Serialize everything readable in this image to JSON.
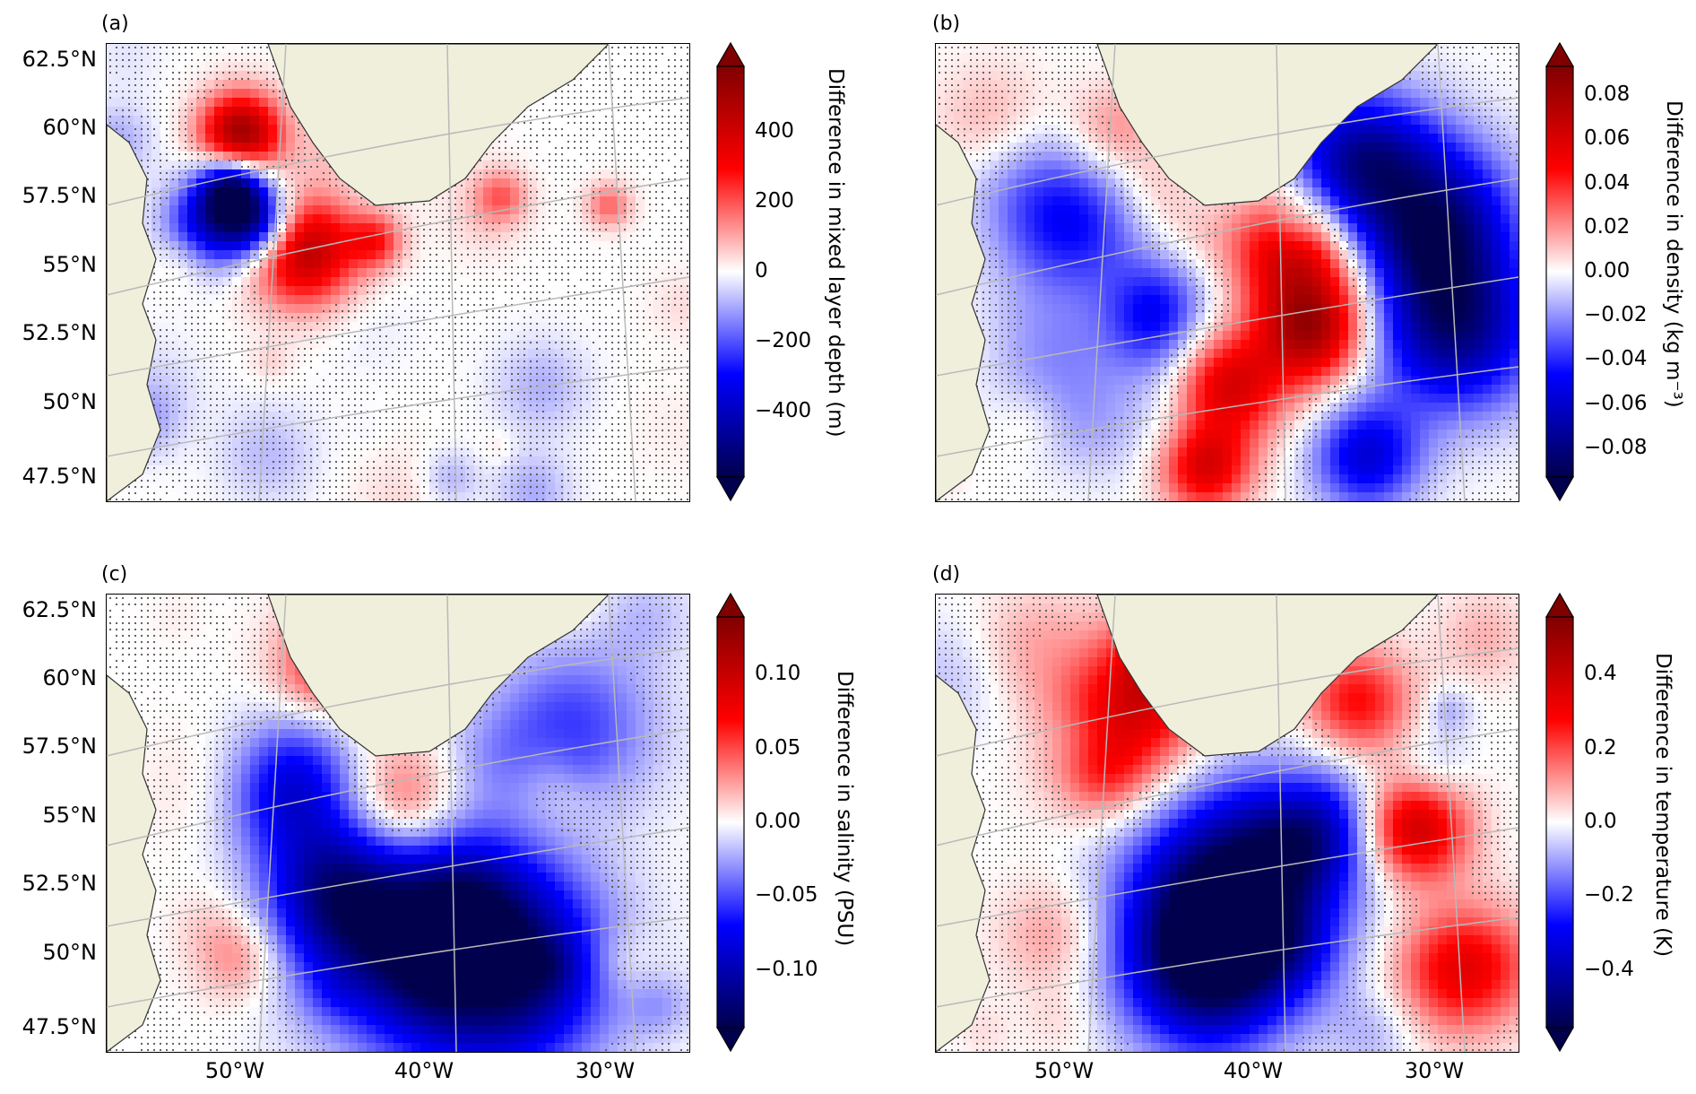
{
  "panels": [
    {
      "letter": "(a)",
      "cbar_title": "Difference in mixed layer depth (m)",
      "ticks": [
        "400",
        "200",
        "0",
        "−200",
        "−400"
      ],
      "seed": 1
    },
    {
      "letter": "(b)",
      "cbar_title": "Difference in density (kg m⁻³)",
      "ticks": [
        "0.08",
        "0.06",
        "0.04",
        "0.02",
        "0.00",
        "−0.02",
        "−0.04",
        "−0.06",
        "−0.08"
      ],
      "seed": 2
    },
    {
      "letter": "(c)",
      "cbar_title": "Difference in salinity (PSU)",
      "ticks": [
        "0.10",
        "0.05",
        "0.00",
        "−0.05",
        "−0.10"
      ],
      "seed": 3
    },
    {
      "letter": "(d)",
      "cbar_title": "Difference in temperature (K)",
      "ticks": [
        "0.4",
        "0.2",
        "0.0",
        "−0.2",
        "−0.4"
      ],
      "seed": 4
    }
  ],
  "lat_labels": [
    "62.5°N",
    "60°N",
    "57.5°N",
    "55°N",
    "52.5°N",
    "50°N",
    "47.5°N"
  ],
  "lon_labels": [
    "50°W",
    "40°W",
    "30°W"
  ],
  "colors": {
    "land": "#efefdc",
    "coast": "#333333",
    "grid": "#b9b9b9",
    "stipple": "#555555",
    "cmap": "seismic"
  }
}
